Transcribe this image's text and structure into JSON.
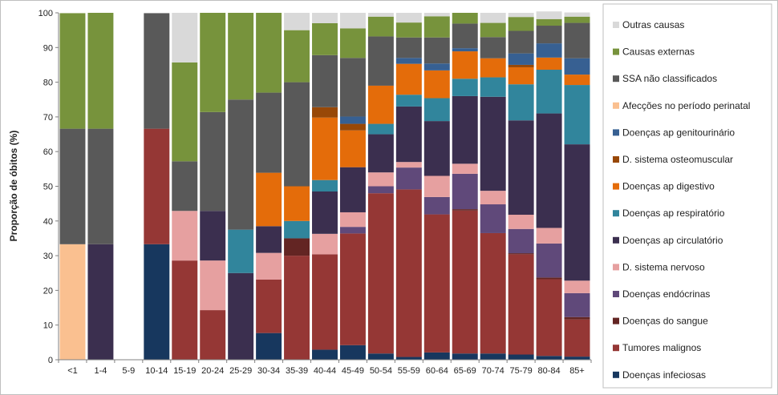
{
  "chart_data": {
    "type": "bar",
    "stacked": true,
    "ylabel": "Proporção de óbitos (%)",
    "xlabel": "",
    "ylim": [
      0,
      100
    ],
    "yticks": [
      0,
      10,
      20,
      30,
      40,
      50,
      60,
      70,
      80,
      90,
      100
    ],
    "grid": false,
    "legend_position": "right",
    "categories": [
      "<1",
      "1-4",
      "5-9",
      "10-14",
      "15-19",
      "20-24",
      "25-29",
      "30-34",
      "35-39",
      "40-44",
      "45-49",
      "50-54",
      "55-59",
      "60-64",
      "65-69",
      "70-74",
      "75-79",
      "80-84",
      "85+"
    ],
    "series": [
      {
        "name": "Doenças infeciosas",
        "color": "#17375e",
        "values": [
          0,
          0,
          0,
          33.3,
          0,
          0,
          0,
          7.7,
          0,
          2.9,
          4.2,
          1.8,
          0.8,
          2.1,
          1.8,
          1.8,
          1.5,
          1.1,
          0.9
        ]
      },
      {
        "name": "Tumores malignos",
        "color": "#953735",
        "values": [
          0,
          0,
          0,
          33.3,
          28.6,
          14.3,
          0,
          15.4,
          30,
          27.5,
          32.2,
          46.2,
          48.3,
          39.8,
          41.2,
          34.7,
          28.9,
          22.1,
          10.7
        ]
      },
      {
        "name": "Doenças do sangue",
        "color": "#632523",
        "values": [
          0,
          0,
          0,
          0,
          0,
          0,
          0,
          0,
          5,
          0,
          0,
          0,
          0,
          0,
          0.4,
          0,
          0.3,
          0.5,
          0.7
        ]
      },
      {
        "name": "Doenças endócrinas",
        "color": "#60497a",
        "values": [
          0,
          0,
          0,
          0,
          0,
          0,
          0,
          0,
          0,
          0,
          1.9,
          2,
          6.3,
          5,
          10.2,
          8.3,
          7,
          9.8,
          6.9
        ]
      },
      {
        "name": "D. sistema nervoso",
        "color": "#e6a0a0",
        "values": [
          0,
          0,
          0,
          0,
          14.3,
          14.3,
          0,
          7.7,
          0,
          5.9,
          4.2,
          4,
          1.6,
          6.1,
          2.9,
          3.9,
          4.1,
          4.5,
          3.6
        ]
      },
      {
        "name": "Doenças ap circulatório",
        "color": "#3b2f4f",
        "values": [
          0,
          33.3,
          0,
          0,
          0,
          14.3,
          25,
          7.7,
          0,
          12.2,
          13,
          11,
          16,
          15.8,
          19.5,
          27.1,
          27.2,
          33,
          39.3
        ]
      },
      {
        "name": "Doenças ap respiratório",
        "color": "#31859c",
        "values": [
          0,
          0,
          0,
          0,
          0,
          0,
          12.5,
          0,
          5,
          3.3,
          0,
          3,
          3.4,
          6.6,
          5,
          5.6,
          10.4,
          12.6,
          17.1
        ]
      },
      {
        "name": "Doenças ap digestivo",
        "color": "#e46c0a",
        "values": [
          0,
          0,
          0,
          0,
          0,
          0,
          0,
          15.4,
          10,
          18,
          10.6,
          11,
          8.9,
          8,
          7.9,
          5.5,
          4.9,
          3.5,
          3
        ]
      },
      {
        "name": "D. sistema osteomuscular",
        "color": "#984807",
        "values": [
          0,
          0,
          0,
          0,
          0,
          0,
          0,
          0,
          0,
          3,
          1.9,
          0,
          0,
          0,
          0,
          0,
          0.7,
          0,
          0
        ]
      },
      {
        "name": "Doenças ap genitourinário",
        "color": "#376092",
        "values": [
          0,
          0,
          0,
          0,
          0,
          0,
          0,
          0,
          0,
          0,
          2.1,
          0,
          1.7,
          2,
          0.9,
          0,
          3.3,
          4.1,
          4.7
        ]
      },
      {
        "name": "Afecções no período perinatal",
        "color": "#fac090",
        "values": [
          33.3,
          0,
          0,
          0,
          0,
          0,
          0,
          0,
          0,
          0,
          0,
          0,
          0,
          0,
          0,
          0,
          0,
          0,
          0
        ]
      },
      {
        "name": "SSA não classificados",
        "color": "#595959",
        "values": [
          33.3,
          33.3,
          0,
          33.3,
          14.3,
          28.5,
          37.5,
          23.1,
          30,
          15,
          16.9,
          14.2,
          5.9,
          7.5,
          7.1,
          6.1,
          6.5,
          5.1,
          10.2
        ]
      },
      {
        "name": "Causas externas",
        "color": "#77933c",
        "values": [
          33.3,
          33.4,
          0,
          0,
          28.5,
          28.6,
          25,
          23,
          15,
          9.2,
          8.5,
          5.7,
          4.3,
          6.1,
          3.1,
          4.1,
          4,
          1.9,
          1.8
        ]
      },
      {
        "name": "Outras causas",
        "color": "#d9d9d9",
        "values": [
          0,
          0,
          0,
          0,
          14.3,
          0,
          0,
          0,
          5,
          3,
          4.5,
          1.1,
          2.8,
          1,
          0,
          2.9,
          1.2,
          2.2,
          1.2
        ]
      }
    ]
  }
}
